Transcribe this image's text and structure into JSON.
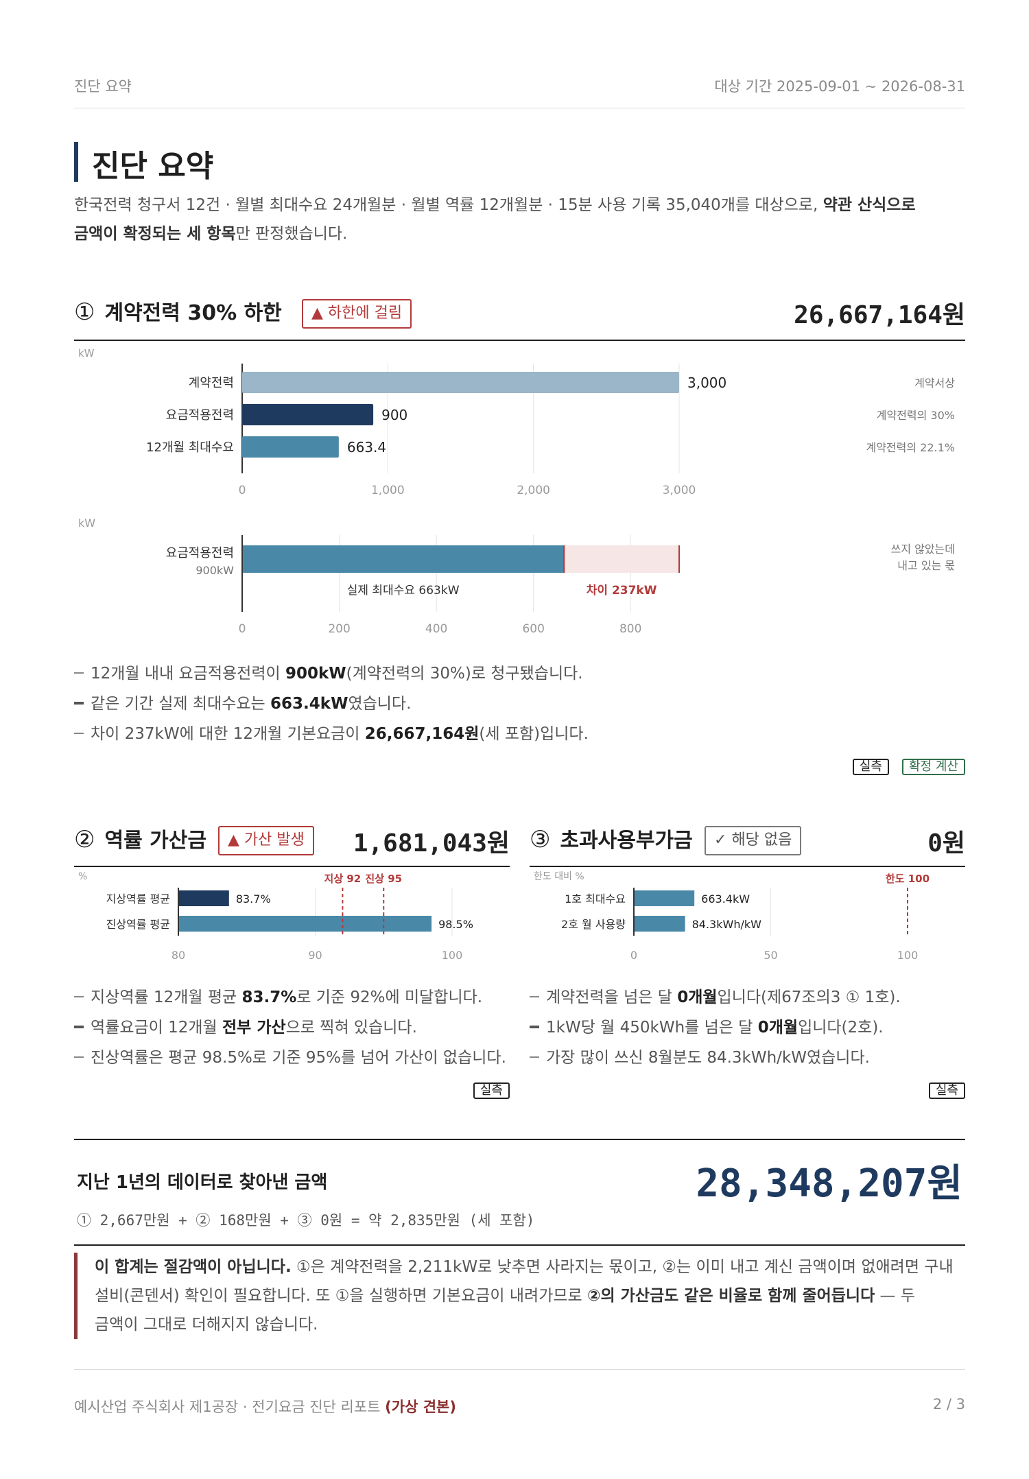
{
  "header": {
    "section_label": "진단 요약",
    "period": "대상 기간 2025-09-01 ~ 2026-08-31"
  },
  "intro": {
    "title": "진단 요약",
    "line1_pre": "한국전력 청구서 12건 · 월별 최대수요 24개월분 · 월별 역률 12개월분 · 15분 사용 기록 35,040개를 대상으로, ",
    "line1_bold": "약관 산식으로",
    "line2_bold": "금액이 확정되는 세 항목",
    "line2_post": "만 판정했습니다."
  },
  "section1": {
    "num": "①",
    "title": "계약전력 30% 하한",
    "badge": "하한에 걸림",
    "amount": "26,667,164원",
    "bullets": [
      {
        "pre": "12개월 내내 요금적용전력이 ",
        "bold": "900kW",
        "post": "(계약전력의 30%)로 청구됐습니다."
      },
      {
        "pre": "같은 기간 실제 최대수요는 ",
        "bold": "663.4kW",
        "post": "였습니다."
      },
      {
        "pre": "차이 237kW에 대한 12개월 기본요금이 ",
        "bold": "26,667,164원",
        "post": "(세 포함)입니다."
      }
    ],
    "tags": [
      "실측",
      "확정 계산"
    ]
  },
  "section2": {
    "num": "②",
    "title": "역률 가산금",
    "badge": "가산 발생",
    "amount": "1,681,043원",
    "bullets": [
      {
        "pre": "지상역률 12개월 평균 ",
        "bold": "83.7%",
        "post": "로 기준 92%에 미달합니다."
      },
      {
        "pre": "역률요금이 12개월 ",
        "bold": "전부 가산",
        "post": "으로 찍혀 있습니다."
      },
      {
        "pre": "진상역률은 평균 98.5%로 기준 95%를 넘어 가산이 없습니다.",
        "bold": "",
        "post": ""
      }
    ],
    "tag": "실측"
  },
  "section3": {
    "num": "③",
    "title": "초과사용부가금",
    "badge": "해당 없음",
    "amount": "0원",
    "bullets": [
      {
        "pre": "계약전력을 넘은 달 ",
        "bold": "0개월",
        "post": "입니다(제67조의3 ① 1호)."
      },
      {
        "pre": "1kW당 월 450kWh를 넘은 달 ",
        "bold": "0개월",
        "post": "입니다(2호)."
      },
      {
        "pre": "가장 많이 쓰신 8월분도 84.3kWh/kW였습니다.",
        "bold": "",
        "post": ""
      }
    ],
    "tag": "실측"
  },
  "total": {
    "title": "지난 1년의 데이터로 찾아낸 금액",
    "amount": "28,348,207원",
    "formula": "① 2,667만원 + ② 168만원 + ③ 0원 = 약 2,835만원 (세 포함)"
  },
  "note": {
    "bold1": "이 합계는 절감액이 아닙니다.",
    "text1": " ①은 계약전력을 2,211kW로 낮추면 사라지는 몫이고, ②는 이미 내고 계신 금액이며 없애려면 구내",
    "text2": "설비(콘덴서) 확인이 필요합니다. 또 ①을 실행하면 기본요금이 내려가므로 ",
    "bold2": "②의 가산금도 같은 비율로 함께 줄어듭니다",
    "text3": " — 두",
    "text4": "금액이 그대로 더해지지 않습니다."
  },
  "footer": {
    "left": "예시산업 주식회사 제1공장 · 전기요금 진단 리포트 ",
    "left_bold": "(가상 견본)",
    "page": "2 / 3"
  },
  "colors": {
    "navy": "#1f3a5f",
    "teal": "#4a88a8",
    "lightblue": "#9bb5c9",
    "red": "#b33a3a",
    "pink": "#f6e7e6",
    "green": "#2f6e4a"
  },
  "chart_data": [
    {
      "type": "bar",
      "orientation": "horizontal",
      "ylabel": "kW",
      "categories": [
        "계약전력",
        "요금적용전력",
        "12개월 최대수요"
      ],
      "values": [
        3000,
        900,
        663.4
      ],
      "value_labels": [
        "3,000",
        "900",
        "663.4"
      ],
      "right_notes": [
        "계약서상",
        "계약전력의 30%",
        "계약전력의 22.1%"
      ],
      "xlim": [
        0,
        3000
      ],
      "xticks": [
        "0",
        "1,000",
        "2,000",
        "3,000"
      ],
      "grid": true
    },
    {
      "type": "bar",
      "orientation": "horizontal",
      "stacked": true,
      "ylabel": "kW",
      "category": "요금적용전력",
      "category_sub": "900kW",
      "segments": [
        {
          "label": "실제 최대수요 663kW",
          "value": 663
        },
        {
          "label": "차이 237kW",
          "value": 237
        }
      ],
      "right_note_1": "쓰지 않았는데",
      "right_note_2": "내고 있는 몫",
      "xlim": [
        0,
        900
      ],
      "xticks": [
        "0",
        "200",
        "400",
        "600",
        "800"
      ],
      "grid": true
    },
    {
      "type": "bar",
      "orientation": "horizontal",
      "ylabel": "%",
      "categories": [
        "지상역률 평균",
        "진상역률 평균"
      ],
      "values": [
        83.7,
        98.5
      ],
      "value_labels": [
        "83.7%",
        "98.5%"
      ],
      "reference_lines": [
        {
          "label": "지상 92",
          "value": 92
        },
        {
          "label": "진상 95",
          "value": 95
        }
      ],
      "xlim": [
        80,
        100
      ],
      "xticks": [
        "80",
        "90",
        "100"
      ],
      "grid": true
    },
    {
      "type": "bar",
      "orientation": "horizontal",
      "ylabel": "한도 대비 %",
      "categories": [
        "1호 최대수요",
        "2호 월 사용량"
      ],
      "values": [
        22.1,
        18.7
      ],
      "value_labels": [
        "663.4kW",
        "84.3kWh/kW"
      ],
      "reference_lines": [
        {
          "label": "한도 100",
          "value": 100
        }
      ],
      "xlim": [
        0,
        100
      ],
      "xticks": [
        "0",
        "50",
        "100"
      ],
      "grid": true
    }
  ]
}
